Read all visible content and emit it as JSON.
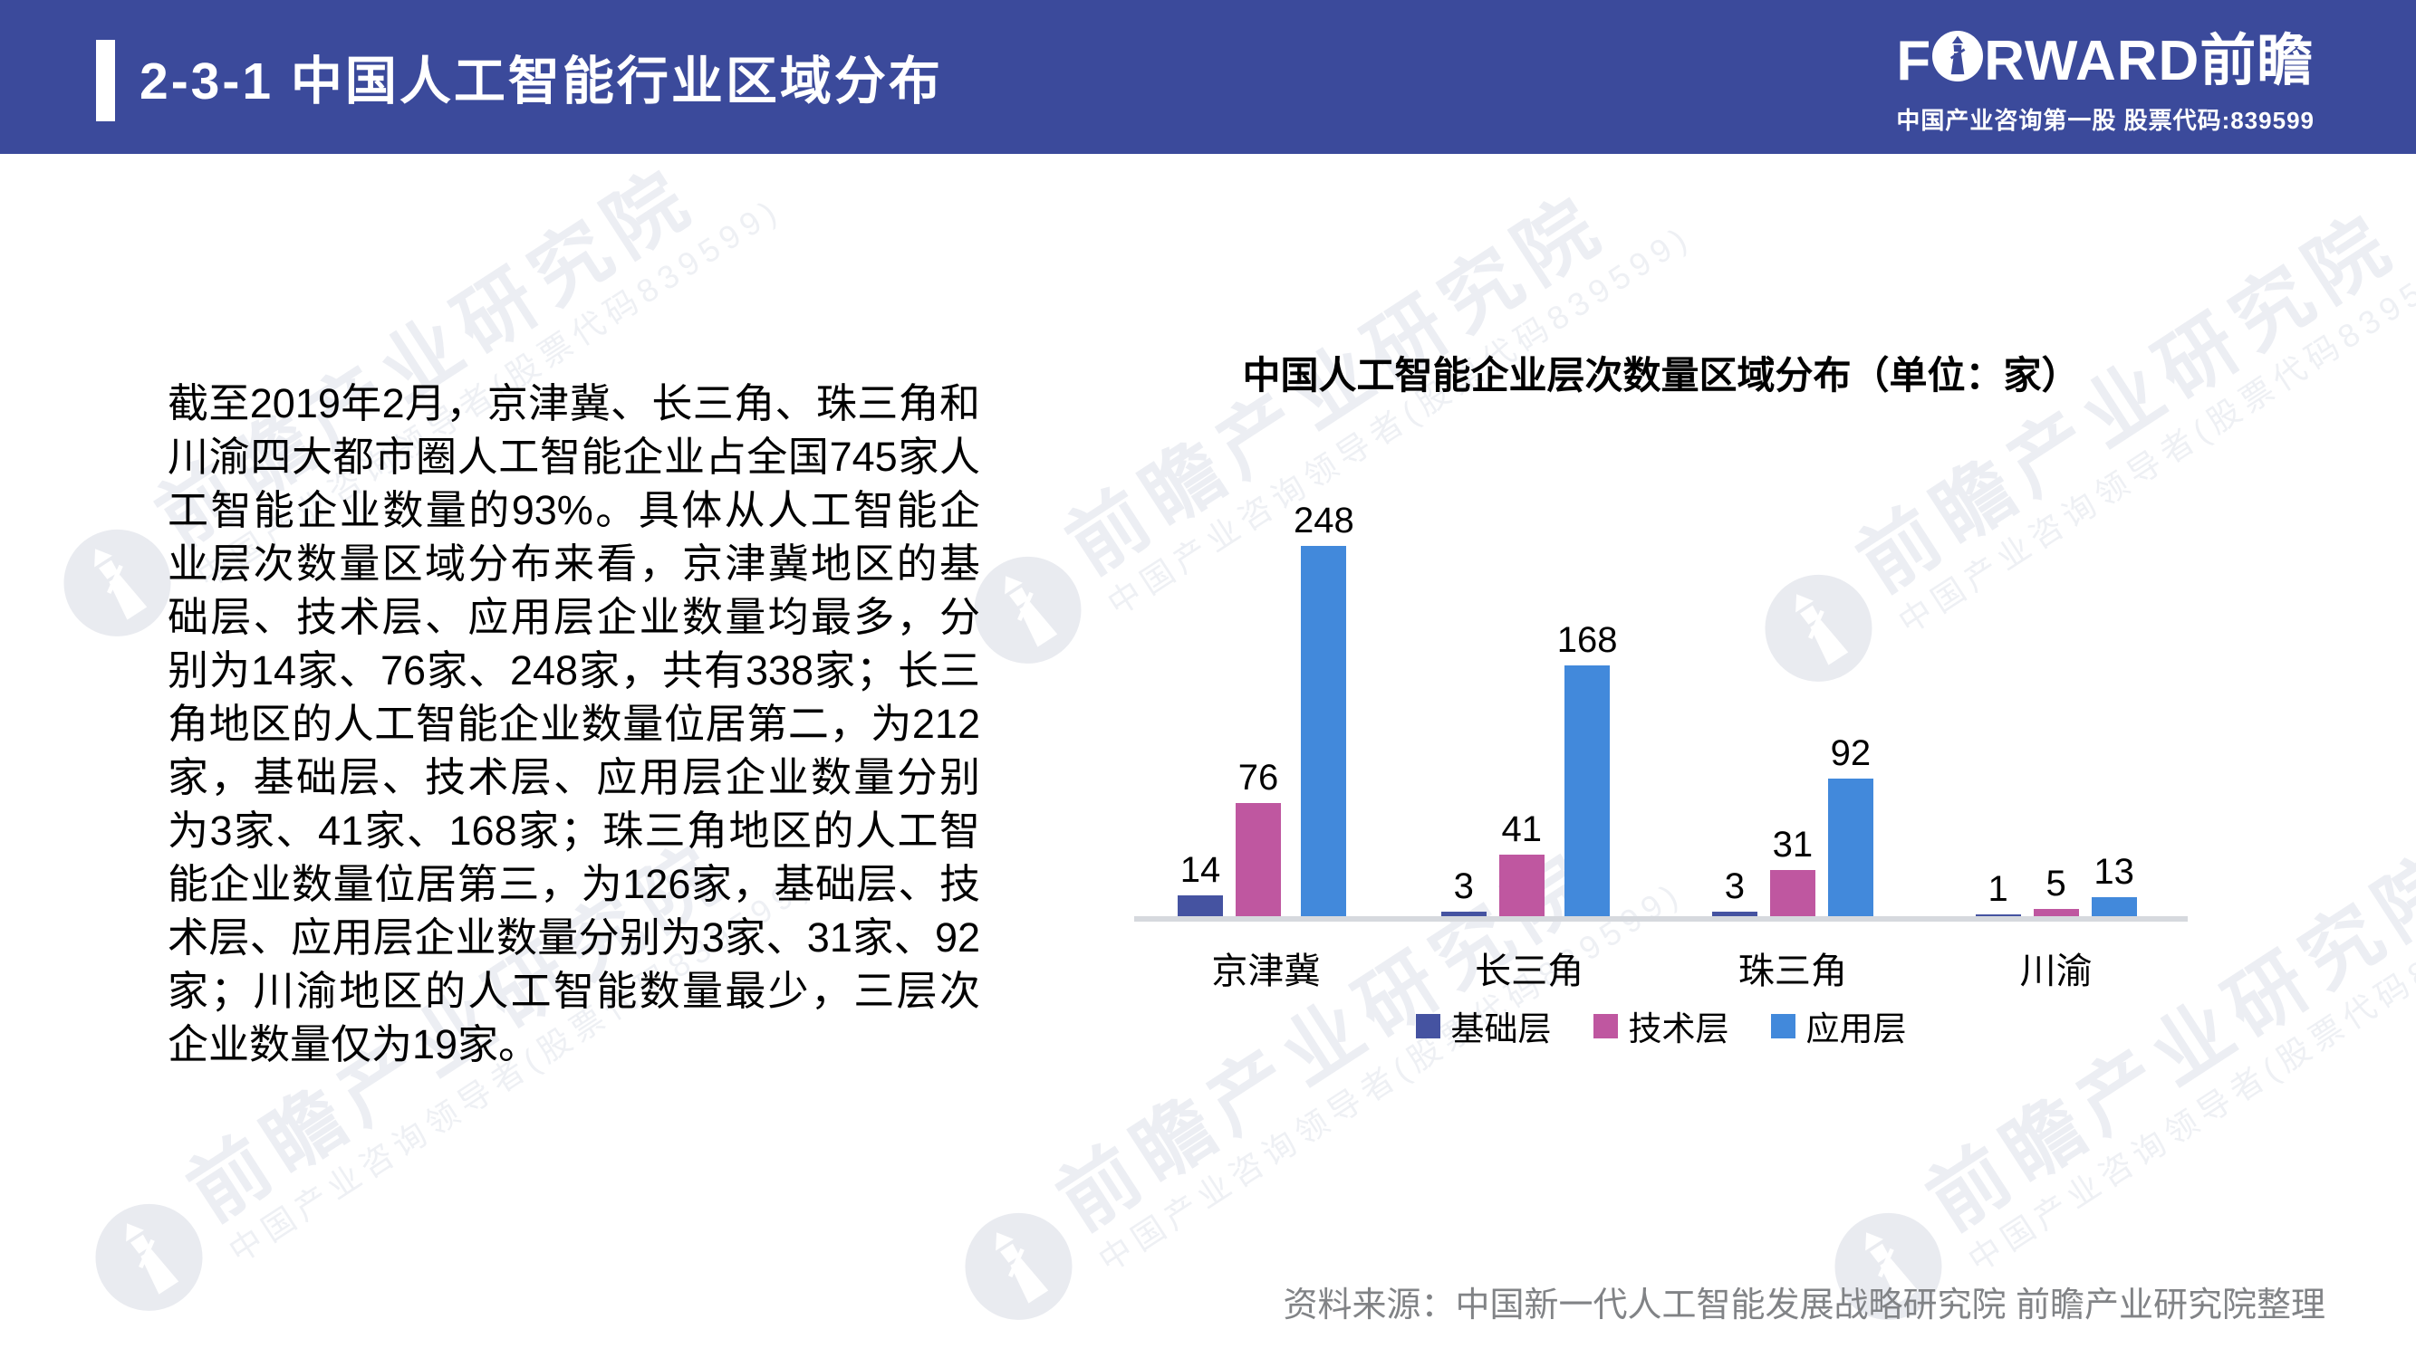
{
  "header": {
    "title": "2-3-1 中国人工智能行业区域分布",
    "bg_color": "#3B4A9B",
    "logo": {
      "left": "F",
      "right": "RWARD",
      "cn": "前瞻",
      "subtitle": "中国产业咨询第一股 股票代码:839599"
    }
  },
  "paragraph": {
    "text": "截至2019年2月，京津冀、长三角、珠三角和川渝四大都市圈人工智能企业占全国745家人工智能企业数量的93%。具体从人工智能企业层次数量区域分布来看，京津冀地区的基础层、技术层、应用层企业数量均最多，分别为14家、76家、248家，共有338家；长三角地区的人工智能企业数量位居第二，为212家，基础层、技术层、应用层企业数量分别为3家、41家、168家；珠三角地区的人工智能企业数量位居第三，为126家，基础层、技术层、应用层企业数量分别为3家、31家、92家；川渝地区的人工智能数量最少，三层次企业数量仅为19家。"
  },
  "chart_data": {
    "type": "bar",
    "title": "中国人工智能企业层次数量区域分布（单位：家）",
    "categories": [
      "京津冀",
      "长三角",
      "珠三角",
      "川渝"
    ],
    "series": [
      {
        "name": "基础层",
        "color": "#4553A1",
        "values": [
          14,
          3,
          3,
          1
        ]
      },
      {
        "name": "技术层",
        "color": "#BF57A0",
        "values": [
          76,
          41,
          31,
          5
        ]
      },
      {
        "name": "应用层",
        "color": "#4289DB",
        "values": [
          248,
          168,
          92,
          13
        ]
      }
    ],
    "ylim": [
      0,
      260
    ],
    "grid": false,
    "legend_position": "bottom",
    "value_labels": true,
    "axis_line_color": "#D6D9DE"
  },
  "footer": {
    "source": "资料来源：中国新一代人工智能发展战略研究院 前瞻产业研究院整理",
    "text_color": "#818386"
  },
  "watermark": {
    "title": "前瞻产业研究院",
    "subtitle": "中国产业咨询领导者(股票代码839599)"
  }
}
